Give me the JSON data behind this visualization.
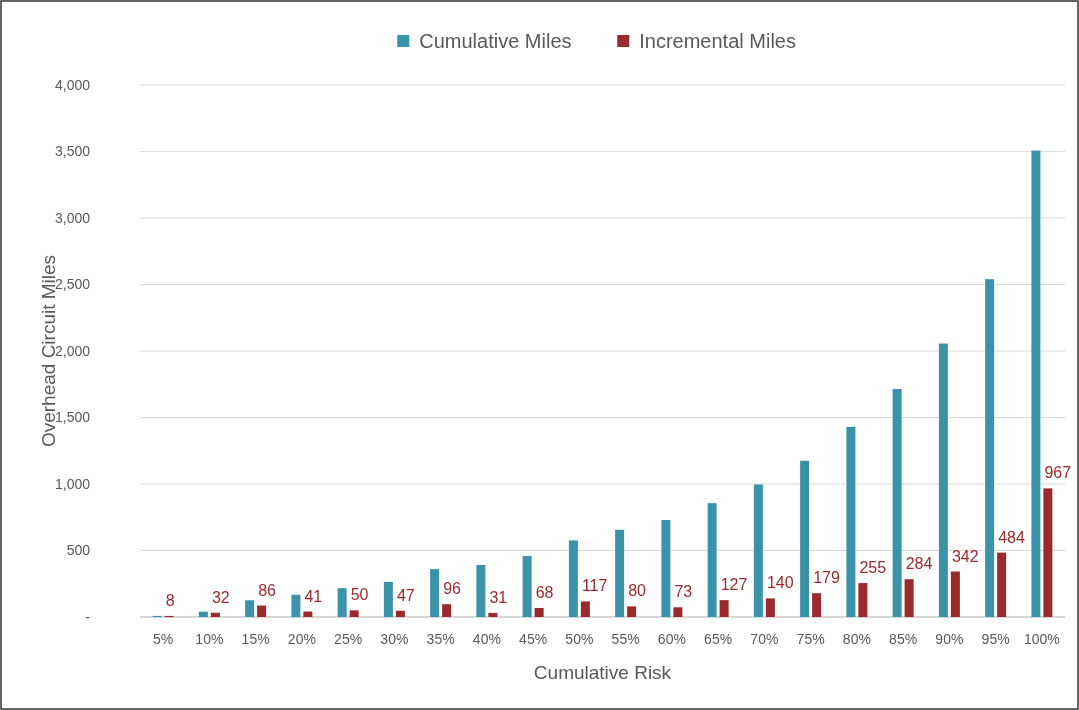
{
  "chart_data": {
    "type": "bar",
    "xlabel": "Cumulative Risk",
    "ylabel": "Overhead Circuit Miles",
    "categories": [
      "5%",
      "10%",
      "15%",
      "20%",
      "25%",
      "30%",
      "35%",
      "40%",
      "45%",
      "50%",
      "55%",
      "60%",
      "65%",
      "70%",
      "75%",
      "80%",
      "85%",
      "90%",
      "95%",
      "100%"
    ],
    "series": [
      {
        "name": "Cumulative Miles",
        "color": "#3a93a9",
        "values": [
          8,
          40,
          126,
          167,
          217,
          264,
          360,
          391,
          459,
          576,
          656,
          729,
          856,
          996,
          1175,
          1430,
          1714,
          2056,
          2540,
          3507
        ]
      },
      {
        "name": "Incremental Miles",
        "color": "#9b2a2c",
        "values": [
          8,
          32,
          86,
          41,
          50,
          47,
          96,
          31,
          68,
          117,
          80,
          73,
          127,
          140,
          179,
          255,
          284,
          342,
          484,
          967
        ],
        "value_labels": [
          "8",
          "32",
          "86",
          "41",
          "50",
          "47",
          "96",
          "31",
          "68",
          "117",
          "80",
          "73",
          "127",
          "140",
          "179",
          "255",
          "284",
          "342",
          "484",
          "967"
        ]
      }
    ],
    "ylim": [
      0,
      4000
    ],
    "yticks": [
      {
        "value": 0,
        "label": "-"
      },
      {
        "value": 500,
        "label": "500"
      },
      {
        "value": 1000,
        "label": "1,000"
      },
      {
        "value": 1500,
        "label": "1,500"
      },
      {
        "value": 2000,
        "label": "2,000"
      },
      {
        "value": 2500,
        "label": "2,500"
      },
      {
        "value": 3000,
        "label": "3,000"
      },
      {
        "value": 3500,
        "label": "3,500"
      },
      {
        "value": 4000,
        "label": "4,000"
      }
    ],
    "grid": "y",
    "legend": "top"
  }
}
